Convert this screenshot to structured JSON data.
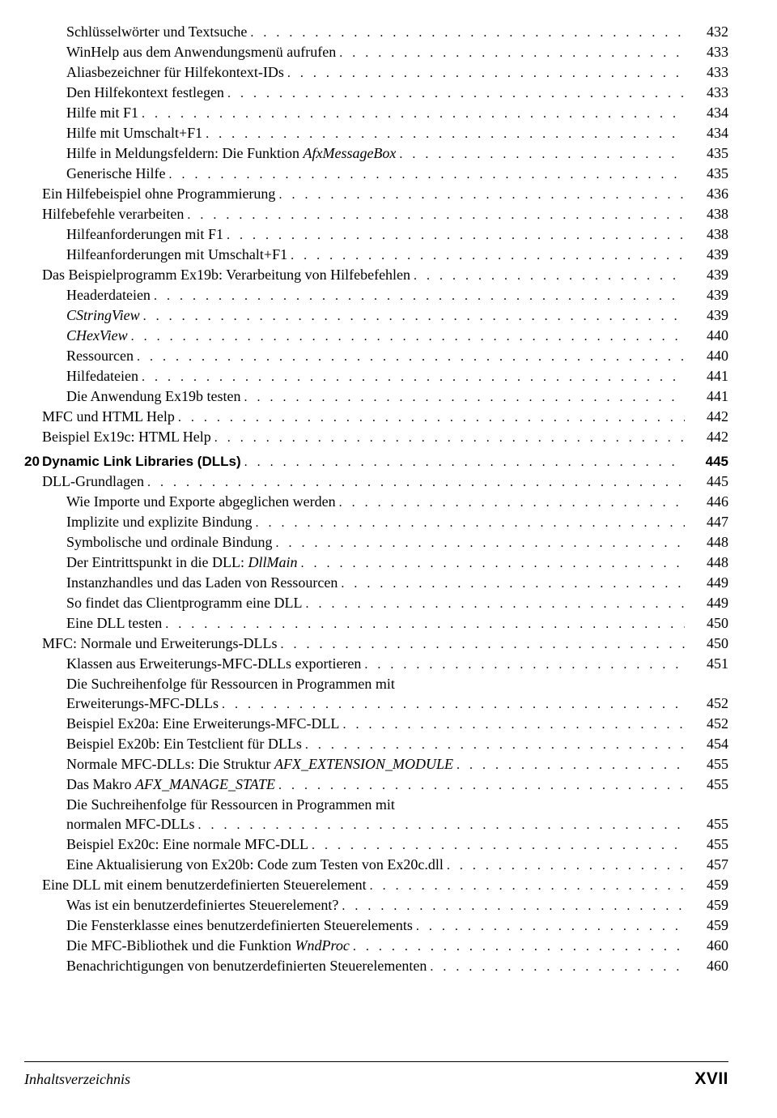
{
  "colors": {
    "text": "#000000",
    "background": "#ffffff",
    "rule": "#000000"
  },
  "typography": {
    "body_family": "Times New Roman",
    "body_size_pt": 11,
    "bold_family": "Arial",
    "page_roman_family": "Arial"
  },
  "entries": [
    {
      "indent": 2,
      "text": "Schlüsselwörter und Textsuche",
      "page": "432"
    },
    {
      "indent": 2,
      "text": "WinHelp aus dem Anwendungsmenü aufrufen",
      "page": "433"
    },
    {
      "indent": 2,
      "text": "Aliasbezeichner für Hilfekontext-IDs",
      "page": "433"
    },
    {
      "indent": 2,
      "text": "Den Hilfekontext festlegen",
      "page": "433"
    },
    {
      "indent": 2,
      "text": "Hilfe mit F1",
      "page": "434"
    },
    {
      "indent": 2,
      "text": "Hilfe mit Umschalt+F1",
      "page": "434"
    },
    {
      "indent": 2,
      "text_html": "Hilfe in Meldungsfeldern: Die Funktion <span class=\"italic\">AfxMessageBox</span>",
      "page": "435"
    },
    {
      "indent": 2,
      "text": "Generische Hilfe",
      "page": "435"
    },
    {
      "indent": 1,
      "text": "Ein Hilfebeispiel ohne Programmierung",
      "page": "436"
    },
    {
      "indent": 1,
      "text": "Hilfebefehle verarbeiten",
      "page": "438"
    },
    {
      "indent": 2,
      "text": "Hilfeanforderungen mit F1",
      "page": "438"
    },
    {
      "indent": 2,
      "text": "Hilfeanforderungen mit Umschalt+F1",
      "page": "439"
    },
    {
      "indent": 1,
      "text": "Das Beispielprogramm Ex19b: Verarbeitung von Hilfebefehlen",
      "page": "439"
    },
    {
      "indent": 2,
      "text": "Headerdateien",
      "page": "439"
    },
    {
      "indent": 2,
      "text_html": "<span class=\"italic\">CStringView</span>",
      "page": "439"
    },
    {
      "indent": 2,
      "text_html": "<span class=\"italic\">CHexView</span>",
      "page": "440"
    },
    {
      "indent": 2,
      "text": "Ressourcen",
      "page": "440"
    },
    {
      "indent": 2,
      "text": "Hilfedateien",
      "page": "441"
    },
    {
      "indent": 2,
      "text": "Die Anwendung Ex19b testen",
      "page": "441"
    },
    {
      "indent": 1,
      "text": "MFC und HTML Help",
      "page": "442"
    },
    {
      "indent": 1,
      "text": "Beispiel Ex19c: HTML Help",
      "page": "442"
    },
    {
      "chapter": "20",
      "text": "Dynamic Link Libraries (DLLs)",
      "page": "445",
      "bold": true,
      "gap": true
    },
    {
      "indent": 1,
      "text": "DLL-Grundlagen",
      "page": "445"
    },
    {
      "indent": 2,
      "text": "Wie Importe und Exporte abgeglichen werden",
      "page": "446"
    },
    {
      "indent": 2,
      "text": "Implizite und explizite Bindung",
      "page": "447"
    },
    {
      "indent": 2,
      "text": "Symbolische und ordinale Bindung",
      "page": "448"
    },
    {
      "indent": 2,
      "text_html": "Der Eintrittspunkt in die DLL: <span class=\"italic\">DllMain</span>",
      "page": "448"
    },
    {
      "indent": 2,
      "text": "Instanzhandles und das Laden von Ressourcen",
      "page": "449"
    },
    {
      "indent": 2,
      "text": "So findet das Clientprogramm eine DLL",
      "page": "449"
    },
    {
      "indent": 2,
      "text": "Eine DLL testen",
      "page": "450"
    },
    {
      "indent": 1,
      "text": "MFC: Normale und Erweiterungs-DLLs",
      "page": "450"
    },
    {
      "indent": 2,
      "text": "Klassen aus Erweiterungs-MFC-DLLs exportieren",
      "page": "451"
    },
    {
      "indent": 2,
      "multi": true,
      "first": "Die Suchreihenfolge für Ressourcen in Programmen mit",
      "second": "Erweiterungs-MFC-DLLs",
      "page": "452"
    },
    {
      "indent": 2,
      "text": "Beispiel Ex20a: Eine Erweiterungs-MFC-DLL",
      "page": "452"
    },
    {
      "indent": 2,
      "text": "Beispiel Ex20b: Ein Testclient für DLLs",
      "page": "454"
    },
    {
      "indent": 2,
      "text_html": "Normale MFC-DLLs: Die Struktur <span class=\"italic\">AFX_EXTENSION_MODULE</span>",
      "page": "455"
    },
    {
      "indent": 2,
      "text_html": "Das Makro <span class=\"italic\">AFX_MANAGE_STATE</span>",
      "page": "455"
    },
    {
      "indent": 2,
      "multi": true,
      "first": "Die Suchreihenfolge für Ressourcen in Programmen mit",
      "second": "normalen MFC-DLLs",
      "page": "455"
    },
    {
      "indent": 2,
      "text": "Beispiel Ex20c: Eine normale MFC-DLL",
      "page": "455"
    },
    {
      "indent": 2,
      "text": "Eine Aktualisierung von Ex20b: Code zum Testen von Ex20c.dll",
      "page": "457"
    },
    {
      "indent": 1,
      "text": "Eine DLL mit einem benutzerdefinierten Steuerelement",
      "page": "459"
    },
    {
      "indent": 2,
      "text": "Was ist ein benutzerdefiniertes Steuerelement?",
      "page": "459"
    },
    {
      "indent": 2,
      "text": "Die Fensterklasse eines benutzerdefinierten Steuerelements",
      "page": "459"
    },
    {
      "indent": 2,
      "text_html": "Die MFC-Bibliothek und die Funktion <span class=\"italic\">WndProc</span>",
      "page": "460"
    },
    {
      "indent": 2,
      "text": "Benachrichtigungen von benutzerdefinierten Steuerelementen",
      "page": "460"
    }
  ],
  "footer": {
    "left": "Inhaltsverzeichnis",
    "right": "XVII"
  }
}
